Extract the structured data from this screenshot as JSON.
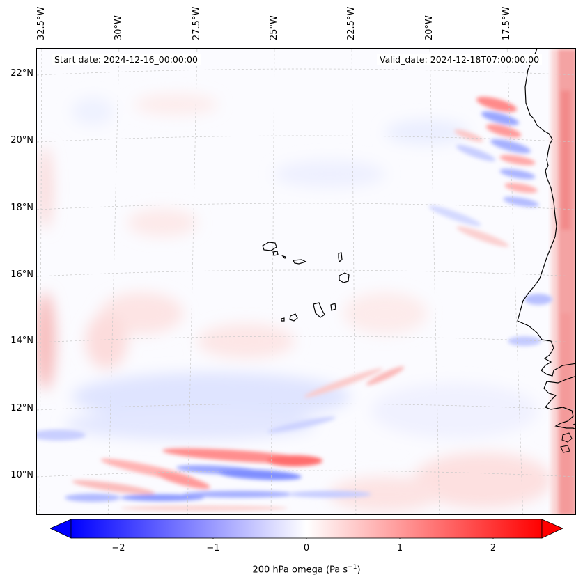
{
  "annotations": {
    "start_date": "Start date: 2024-12-16_00:00:00",
    "valid_date": "Valid_date: 2024-12-18T07:00:00.00"
  },
  "longitude_labels": [
    "32.5°W",
    "30°W",
    "27.5°W",
    "25°W",
    "22.5°W",
    "20°W",
    "17.5°W"
  ],
  "latitude_labels": [
    "22°N",
    "20°N",
    "18°N",
    "16°N",
    "14°N",
    "12°N",
    "10°N"
  ],
  "colorbar": {
    "ticks": [
      "−2",
      "−1",
      "0",
      "1",
      "2"
    ],
    "tick_values": [
      -2,
      -1,
      0,
      1,
      2
    ],
    "range": [
      -2.75,
      2.75
    ],
    "label": "200 hPa omega (Pa s",
    "label_sup": "−1",
    "label_end": ")",
    "colormap": "bwr",
    "low_color": "#0000ff",
    "mid_color": "#ffffff",
    "high_color": "#ff0000"
  },
  "map": {
    "coastline_color": "#000000",
    "gridline_color": "#c8c8c8"
  }
}
